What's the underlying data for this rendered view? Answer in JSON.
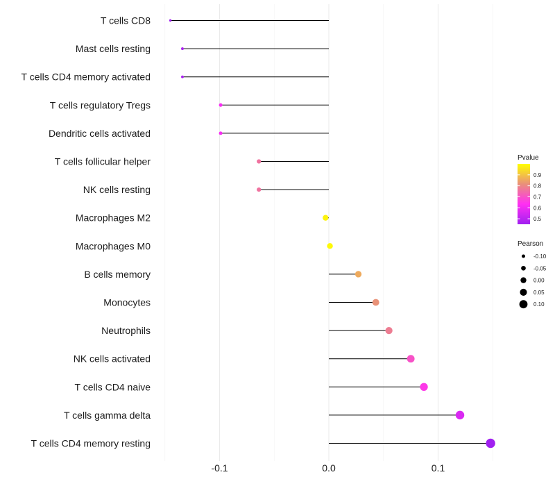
{
  "chart_data": {
    "type": "lollipop",
    "title": "",
    "xlabel": "",
    "ylabel": "",
    "xlim": [
      -0.15,
      0.15
    ],
    "xticks": [
      -0.1,
      0.0,
      0.1
    ],
    "xtick_labels": [
      "-0.1",
      "0.0",
      "0.1"
    ],
    "grid": "vertical",
    "categories": [
      "T cells CD8",
      "Mast cells resting",
      "T cells CD4 memory activated",
      "T cells regulatory  Tregs",
      "Dendritic cells activated",
      "T cells follicular helper",
      "NK cells resting",
      "Macrophages M2",
      "Macrophages M0",
      "B cells memory",
      "Monocytes",
      "Neutrophils",
      "NK cells activated",
      "T cells CD4 naive",
      "T cells gamma delta",
      "T cells CD4 memory resting"
    ],
    "values": [
      -0.145,
      -0.134,
      -0.134,
      -0.099,
      -0.099,
      -0.064,
      -0.064,
      -0.003,
      0.001,
      0.027,
      0.043,
      0.055,
      0.075,
      0.087,
      0.12,
      0.148
    ],
    "pvalues": [
      0.45,
      0.47,
      0.47,
      0.62,
      0.62,
      0.76,
      0.76,
      0.98,
      0.99,
      0.86,
      0.82,
      0.78,
      0.7,
      0.65,
      0.56,
      0.45
    ],
    "legend_color": {
      "title": "Pvalue",
      "ticks": [
        0.5,
        0.6,
        0.7,
        0.8,
        0.9
      ],
      "tick_labels": [
        "0.5",
        "0.6",
        "0.7",
        "0.8",
        "0.9"
      ],
      "range": [
        0.45,
        1.0
      ],
      "colors": [
        "#a020f0",
        "#ff2ff3",
        "#e9907a",
        "#ffff00"
      ]
    },
    "legend_size": {
      "title": "Pearson",
      "values": [
        -0.1,
        -0.05,
        0.0,
        0.05,
        0.1
      ],
      "labels": [
        "-0.10",
        "-0.05",
        "0.00",
        "0.05",
        "0.10"
      ]
    },
    "legend_position": "right"
  }
}
